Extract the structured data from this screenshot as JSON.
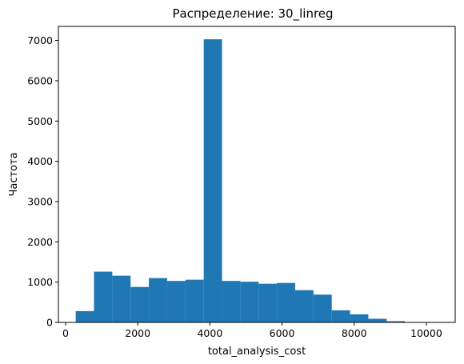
{
  "chart_data": {
    "type": "bar",
    "title": "Распределение: 30_linreg",
    "xlabel": "total_analysis_cost",
    "ylabel": "Частота",
    "xlim": [
      -200,
      10800
    ],
    "ylim": [
      0,
      7350
    ],
    "xticks": [
      0,
      2000,
      4000,
      6000,
      8000,
      10000
    ],
    "yticks": [
      0,
      1000,
      2000,
      3000,
      4000,
      5000,
      6000,
      7000
    ],
    "bar_color": "#1f77b4",
    "bins": [
      {
        "x0": 280,
        "x1": 787,
        "count": 280
      },
      {
        "x0": 787,
        "x1": 1294,
        "count": 1260
      },
      {
        "x0": 1294,
        "x1": 1801,
        "count": 1160
      },
      {
        "x0": 1801,
        "x1": 2308,
        "count": 880
      },
      {
        "x0": 2308,
        "x1": 2815,
        "count": 1100
      },
      {
        "x0": 2815,
        "x1": 3322,
        "count": 1030
      },
      {
        "x0": 3322,
        "x1": 3829,
        "count": 1060
      },
      {
        "x0": 3829,
        "x1": 4336,
        "count": 7030
      },
      {
        "x0": 4336,
        "x1": 4843,
        "count": 1030
      },
      {
        "x0": 4843,
        "x1": 5350,
        "count": 1010
      },
      {
        "x0": 5350,
        "x1": 5857,
        "count": 960
      },
      {
        "x0": 5857,
        "x1": 6364,
        "count": 980
      },
      {
        "x0": 6364,
        "x1": 6871,
        "count": 800
      },
      {
        "x0": 6871,
        "x1": 7378,
        "count": 690
      },
      {
        "x0": 7378,
        "x1": 7885,
        "count": 300
      },
      {
        "x0": 7885,
        "x1": 8392,
        "count": 200
      },
      {
        "x0": 8392,
        "x1": 8899,
        "count": 90
      },
      {
        "x0": 8899,
        "x1": 9406,
        "count": 30
      },
      {
        "x0": 9406,
        "x1": 9913,
        "count": 10
      },
      {
        "x0": 9913,
        "x1": 10420,
        "count": 5
      }
    ]
  }
}
